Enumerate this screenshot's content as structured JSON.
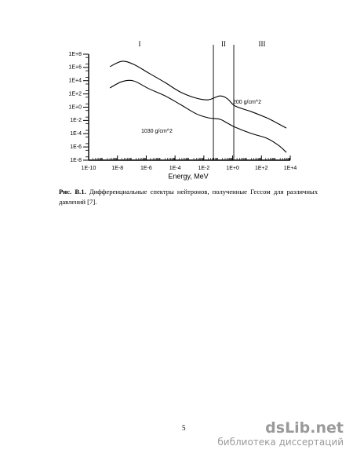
{
  "chart_data": {
    "type": "line",
    "x_label": "Energy, MeV",
    "log_x": true,
    "log_y": true,
    "xlim": [
      1e-10,
      10000
    ],
    "ylim": [
      1e-08,
      100000000
    ],
    "xticks": [
      {
        "value": 1e-10,
        "label": "1E-10"
      },
      {
        "value": 1e-08,
        "label": "1E-8"
      },
      {
        "value": 1e-06,
        "label": "1E-6"
      },
      {
        "value": 0.0001,
        "label": "1E-4"
      },
      {
        "value": 0.01,
        "label": "1E-2"
      },
      {
        "value": 1,
        "label": "1E+0"
      },
      {
        "value": 100,
        "label": "1E+2"
      },
      {
        "value": 10000,
        "label": "1E+4"
      }
    ],
    "yticks": [
      {
        "value": 1e-08,
        "label": "1E-8"
      },
      {
        "value": 1e-06,
        "label": "1E-6"
      },
      {
        "value": 0.0001,
        "label": "1E-4"
      },
      {
        "value": 0.01,
        "label": "1E-2"
      },
      {
        "value": 1,
        "label": "1E+0"
      },
      {
        "value": 100,
        "label": "1E+2"
      },
      {
        "value": 10000,
        "label": "1E+4"
      },
      {
        "value": 1000000,
        "label": "1E+6"
      },
      {
        "value": 100000000,
        "label": "1E+8"
      }
    ],
    "region_lines": [
      0.046,
      1.2
    ],
    "regions": [
      "I",
      "II",
      "III"
    ],
    "series": [
      {
        "name": "200 g/cm^2",
        "color": "#000000",
        "x": [
          3e-09,
          2e-08,
          1.3e-07,
          1.5e-06,
          2e-05,
          0.00023,
          0.003,
          0.02,
          0.13,
          0.44,
          1.5,
          19,
          230,
          800,
          5400
        ],
        "values": [
          1300000,
          8500000,
          3000000,
          140000,
          5400,
          200,
          23,
          13,
          50,
          18,
          1.5,
          0.22,
          0.025,
          0.0065,
          0.0007
        ]
      },
      {
        "name": "1030 g/cm^2",
        "color": "#000000",
        "x": [
          3e-09,
          2e-08,
          1.3e-07,
          1.5e-06,
          2e-05,
          0.00023,
          0.003,
          0.02,
          0.13,
          0.44,
          1.5,
          19,
          230,
          1500,
          5400
        ],
        "values": [
          810,
          7000,
          9300,
          620,
          52,
          2.6,
          0.1,
          0.025,
          0.015,
          0.0038,
          0.00095,
          0.00011,
          2.1e-05,
          1.8e-06,
          1.5e-07
        ]
      }
    ]
  },
  "caption": {
    "label": "Рис. В.1.",
    "text": "Дифференциальные спектры нейтронов, полученные Гессом для различных давлений [7]."
  },
  "page_number": "5",
  "watermark": {
    "logo": "dsLib.net",
    "subtitle": "библиотека диссертаций"
  }
}
